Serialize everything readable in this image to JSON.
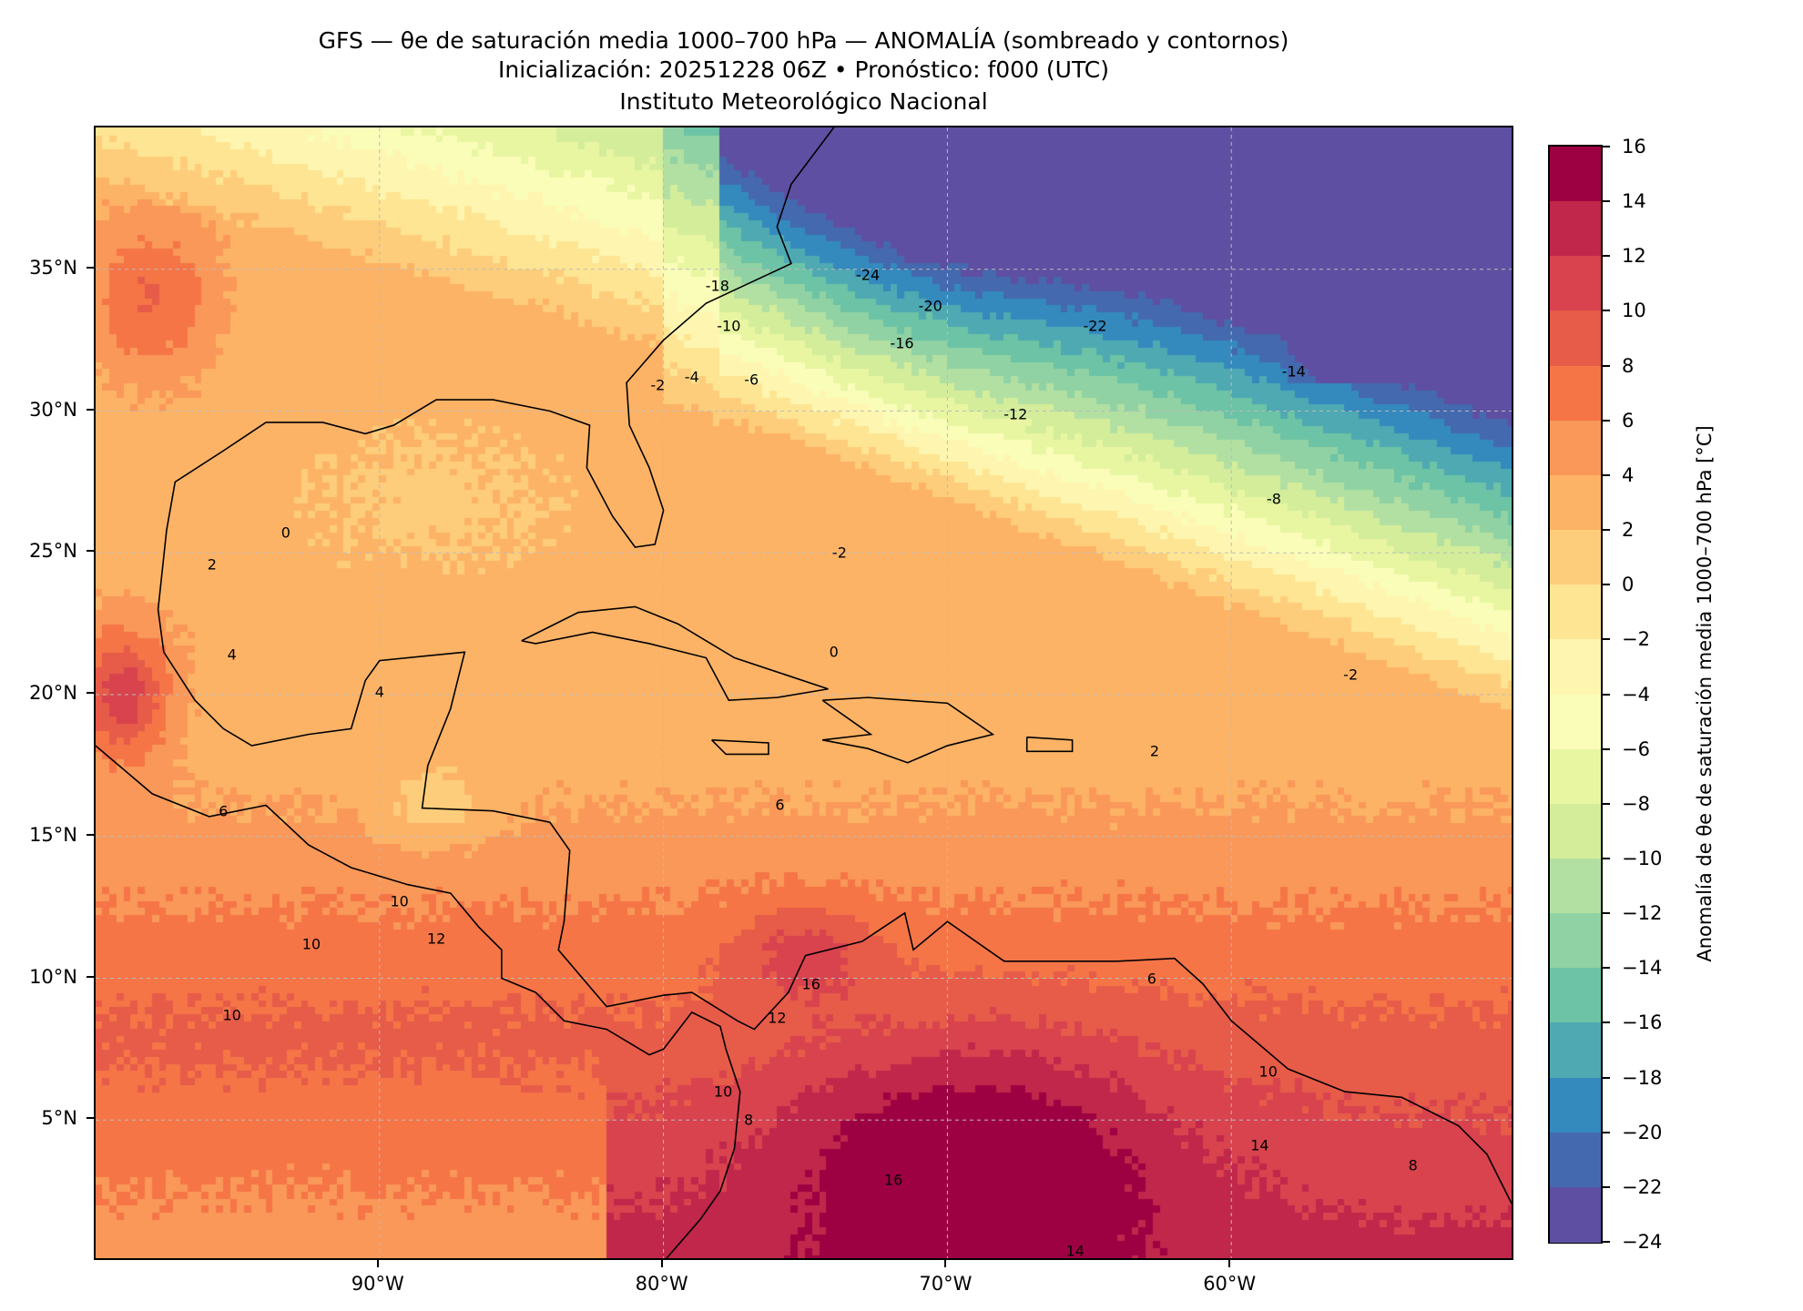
{
  "title": {
    "line1": "GFS — θe de saturación media 1000–700 hPa — ANOMALÍA (sombreado y contornos)",
    "line2": "Inicialización: 20251228 06Z   •   Pronóstico: f000 (UTC)",
    "line3": "Instituto Meteorológico Nacional"
  },
  "chart_data": {
    "type": "heatmap",
    "subtype": "filled-contour map",
    "extent": {
      "lon": [
        -100,
        -50
      ],
      "lat": [
        0,
        40
      ]
    },
    "x_ticks": [
      {
        "lon": -90,
        "label": "90°W"
      },
      {
        "lon": -80,
        "label": "80°W"
      },
      {
        "lon": -70,
        "label": "70°W"
      },
      {
        "lon": -60,
        "label": "60°W"
      }
    ],
    "y_ticks": [
      {
        "lat": 5,
        "label": "5°N"
      },
      {
        "lat": 10,
        "label": "10°N"
      },
      {
        "lat": 15,
        "label": "15°N"
      },
      {
        "lat": 20,
        "label": "20°N"
      },
      {
        "lat": 25,
        "label": "25°N"
      },
      {
        "lat": 30,
        "label": "30°N"
      },
      {
        "lat": 35,
        "label": "35°N"
      }
    ],
    "colorbar": {
      "label": "Anomalía de θe de saturación media 1000–700 hPa [°C]",
      "range": [
        -24,
        16
      ],
      "ticks": [
        "16",
        "14",
        "12",
        "10",
        "8",
        "6",
        "4",
        "2",
        "0",
        "−2",
        "−4",
        "−6",
        "−8",
        "−10",
        "−12",
        "−14",
        "−16",
        "−18",
        "−20",
        "−22",
        "−24"
      ],
      "colors": [
        "#9e0142",
        "#c0274a",
        "#d8434e",
        "#e75b49",
        "#f57547",
        "#f99858",
        "#fdb366",
        "#fdcd7b",
        "#fee593",
        "#fef6b0",
        "#fafdb8",
        "#e8f6a2",
        "#d4ed9b",
        "#b2e0a2",
        "#90d2a4",
        "#6cc3a5",
        "#4fa9b2",
        "#3489bd",
        "#4569ae",
        "#5e4fa2"
      ]
    },
    "contour_labels": [
      {
        "text": "-24",
        "lon": -72.8,
        "lat": 34.8
      },
      {
        "text": "-22",
        "lon": -64.8,
        "lat": 33.0
      },
      {
        "text": "-20",
        "lon": -70.6,
        "lat": 33.7
      },
      {
        "text": "-18",
        "lon": -78.1,
        "lat": 34.4
      },
      {
        "text": "-16",
        "lon": -71.6,
        "lat": 32.4
      },
      {
        "text": "-14",
        "lon": -57.8,
        "lat": 31.4
      },
      {
        "text": "-12",
        "lon": -67.6,
        "lat": 29.9
      },
      {
        "text": "-10",
        "lon": -77.7,
        "lat": 33.0
      },
      {
        "text": "-8",
        "lon": -58.5,
        "lat": 26.9
      },
      {
        "text": "-6",
        "lon": -76.9,
        "lat": 31.1
      },
      {
        "text": "-4",
        "lon": -79.0,
        "lat": 31.2
      },
      {
        "text": "-2",
        "lon": -80.2,
        "lat": 30.9
      },
      {
        "text": "-2",
        "lon": -73.8,
        "lat": 25.0
      },
      {
        "text": "-2",
        "lon": -55.8,
        "lat": 20.7
      },
      {
        "text": "0",
        "lon": -74.0,
        "lat": 21.5
      },
      {
        "text": "0",
        "lon": -93.3,
        "lat": 25.7
      },
      {
        "text": "2",
        "lon": -95.9,
        "lat": 24.6
      },
      {
        "text": "2",
        "lon": -62.7,
        "lat": 18.0
      },
      {
        "text": "4",
        "lon": -90.0,
        "lat": 20.1
      },
      {
        "text": "4",
        "lon": -95.2,
        "lat": 21.4
      },
      {
        "text": "6",
        "lon": -95.5,
        "lat": 15.9
      },
      {
        "text": "6",
        "lon": -75.9,
        "lat": 16.1
      },
      {
        "text": "6",
        "lon": -62.8,
        "lat": 10.0
      },
      {
        "text": "8",
        "lon": -77.0,
        "lat": 5.0
      },
      {
        "text": "8",
        "lon": -53.6,
        "lat": 3.4
      },
      {
        "text": "10",
        "lon": -89.3,
        "lat": 12.7
      },
      {
        "text": "10",
        "lon": -92.4,
        "lat": 11.2
      },
      {
        "text": "10",
        "lon": -95.2,
        "lat": 8.7
      },
      {
        "text": "10",
        "lon": -77.9,
        "lat": 6.0
      },
      {
        "text": "10",
        "lon": -58.7,
        "lat": 6.7
      },
      {
        "text": "12",
        "lon": -88.0,
        "lat": 11.4
      },
      {
        "text": "12",
        "lon": -76.0,
        "lat": 8.6
      },
      {
        "text": "14",
        "lon": -59.0,
        "lat": 4.1
      },
      {
        "text": "14",
        "lon": -65.5,
        "lat": 0.4
      },
      {
        "text": "16",
        "lon": -74.8,
        "lat": 9.8
      },
      {
        "text": "16",
        "lon": -71.9,
        "lat": 2.9
      }
    ]
  }
}
